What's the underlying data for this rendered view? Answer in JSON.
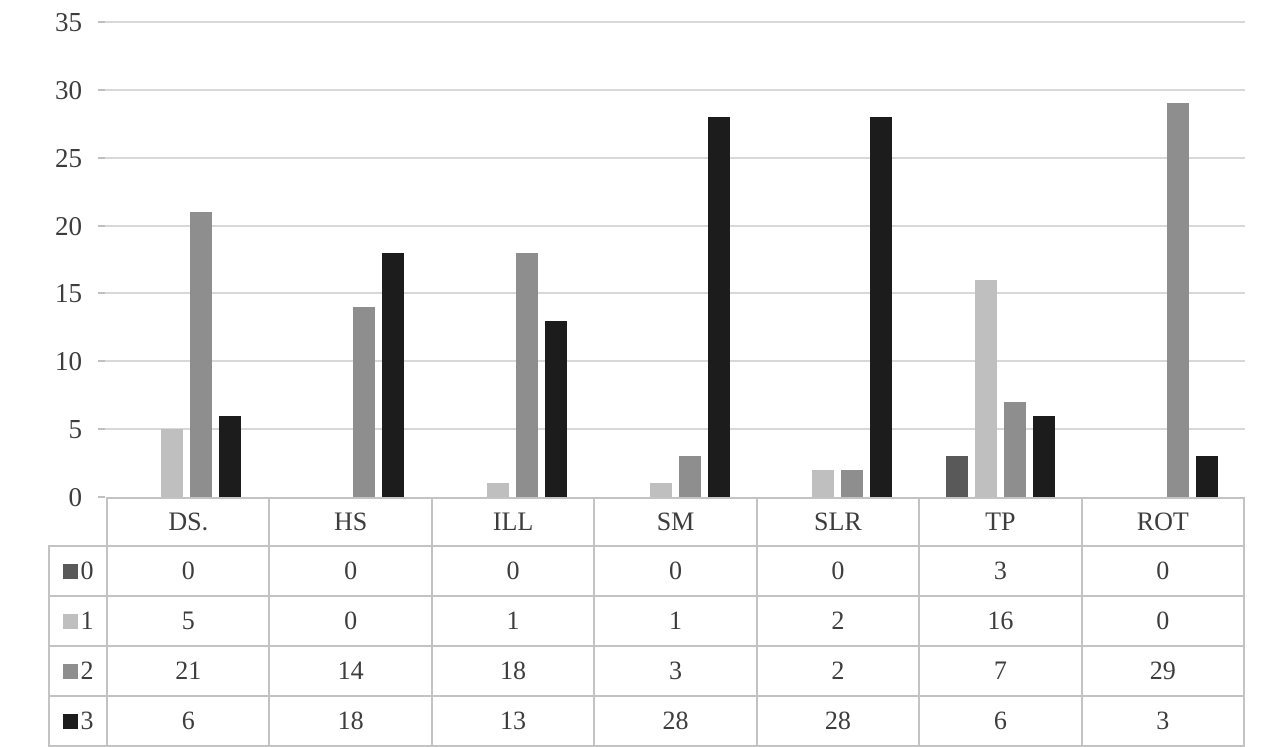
{
  "chart_data": {
    "type": "bar",
    "title": "",
    "xlabel": "",
    "ylabel": "",
    "categories": [
      "DS.",
      "HS",
      "ILL",
      "SM",
      "SLR",
      "TP",
      "ROT"
    ],
    "series": [
      {
        "name": "0",
        "color": "#595959",
        "values": [
          0,
          0,
          0,
          0,
          0,
          3,
          0
        ]
      },
      {
        "name": "1",
        "color": "#bfbfbf",
        "values": [
          5,
          0,
          1,
          1,
          2,
          16,
          0
        ]
      },
      {
        "name": "2",
        "color": "#8e8e8e",
        "values": [
          21,
          14,
          18,
          3,
          2,
          7,
          29
        ]
      },
      {
        "name": "3",
        "color": "#1c1c1c",
        "values": [
          6,
          18,
          13,
          28,
          28,
          6,
          3
        ]
      }
    ],
    "ylim": [
      0,
      35
    ],
    "yticks": [
      0,
      5,
      10,
      15,
      20,
      25,
      30,
      35
    ],
    "grid": true,
    "legend_position": "data-table-left-column",
    "data_table_shown": true
  },
  "colors": {
    "background": "#ffffff",
    "gridline": "#d8d8d8",
    "tick": "#c0c0c0",
    "table_border": "#c3c3c3",
    "text": "#3d3d3d"
  }
}
